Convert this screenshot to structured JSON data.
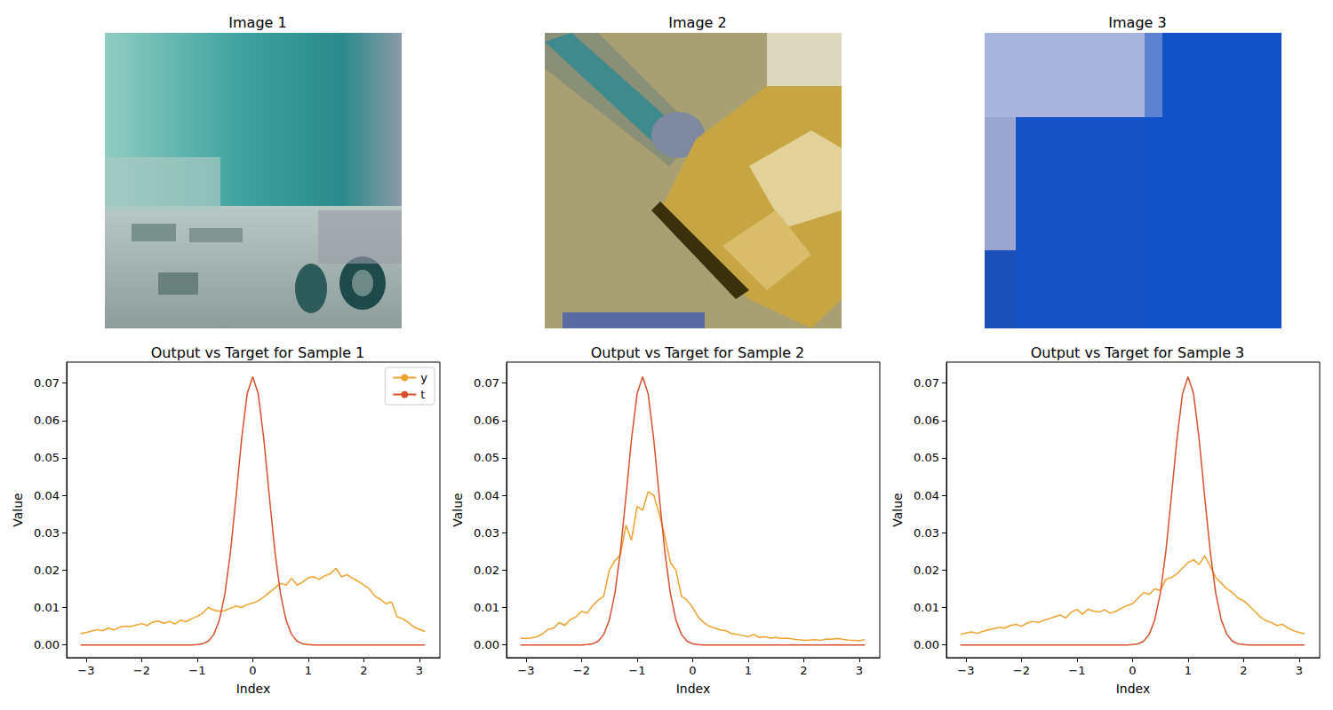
{
  "images": [
    {
      "title": "Image 1"
    },
    {
      "title": "Image 2"
    },
    {
      "title": "Image 3"
    }
  ],
  "chart_data": [
    {
      "type": "line",
      "title": "Output vs Target for Sample 1",
      "x_label": "Index",
      "y_label": "Value",
      "x": [
        -3.1,
        -3.0,
        -2.9,
        -2.8,
        -2.7,
        -2.6,
        -2.5,
        -2.4,
        -2.3,
        -2.2,
        -2.1,
        -2.0,
        -1.9,
        -1.8,
        -1.7,
        -1.6,
        -1.5,
        -1.4,
        -1.3,
        -1.2,
        -1.1,
        -1.0,
        -0.9,
        -0.8,
        -0.7,
        -0.6,
        -0.5,
        -0.4,
        -0.3,
        -0.2,
        -0.1,
        0.0,
        0.1,
        0.2,
        0.3,
        0.4,
        0.5,
        0.6,
        0.7,
        0.8,
        0.9,
        1.0,
        1.1,
        1.2,
        1.3,
        1.4,
        1.5,
        1.6,
        1.7,
        1.8,
        1.9,
        2.0,
        2.1,
        2.2,
        2.3,
        2.4,
        2.5,
        2.6,
        2.7,
        2.8,
        2.9,
        3.0,
        3.1
      ],
      "series": [
        {
          "name": "y",
          "color": "#f0a12c",
          "values": [
            0.003,
            0.0033,
            0.0037,
            0.0041,
            0.0038,
            0.0045,
            0.004,
            0.0047,
            0.005,
            0.0049,
            0.0053,
            0.0057,
            0.0052,
            0.0061,
            0.0064,
            0.0058,
            0.0063,
            0.0056,
            0.0066,
            0.0062,
            0.007,
            0.0076,
            0.0085,
            0.01,
            0.0093,
            0.009,
            0.0092,
            0.0098,
            0.0104,
            0.01,
            0.0108,
            0.0112,
            0.0118,
            0.0128,
            0.014,
            0.0152,
            0.0165,
            0.016,
            0.0178,
            0.016,
            0.0168,
            0.018,
            0.0182,
            0.0175,
            0.0185,
            0.019,
            0.0205,
            0.0182,
            0.0188,
            0.0178,
            0.017,
            0.016,
            0.015,
            0.013,
            0.0122,
            0.011,
            0.0115,
            0.0075,
            0.007,
            0.006,
            0.0048,
            0.0042,
            0.0036
          ]
        },
        {
          "name": "t",
          "color": "#d8502b",
          "values": [
            0,
            0,
            0,
            0,
            0,
            0,
            0,
            0,
            0,
            0,
            0,
            0,
            0,
            0,
            0,
            0,
            0,
            0,
            0,
            0,
            0,
            0.0001,
            0.0003,
            0.001,
            0.0028,
            0.0066,
            0.0137,
            0.0249,
            0.0396,
            0.055,
            0.0671,
            0.0717,
            0.0671,
            0.055,
            0.0396,
            0.0249,
            0.0137,
            0.0066,
            0.0028,
            0.001,
            0.0003,
            0.0001,
            0,
            0,
            0,
            0,
            0,
            0,
            0,
            0,
            0,
            0,
            0,
            0,
            0,
            0,
            0,
            0,
            0,
            0,
            0,
            0,
            0
          ]
        }
      ],
      "xlim": [
        -3.35,
        3.37
      ],
      "ylim": [
        -0.0034,
        0.0756
      ],
      "xticks": [
        {
          "value": -3,
          "label": "−3"
        },
        {
          "value": -2,
          "label": "−2"
        },
        {
          "value": -1,
          "label": "−1"
        },
        0,
        1,
        2,
        3
      ],
      "yticks": [
        {
          "value": 0,
          "label": "0.00"
        },
        {
          "value": 0.01,
          "label": "0.01"
        },
        {
          "value": 0.02,
          "label": "0.02"
        },
        {
          "value": 0.03,
          "label": "0.03"
        },
        {
          "value": 0.04,
          "label": "0.04"
        },
        {
          "value": 0.05,
          "label": "0.05"
        },
        {
          "value": 0.06,
          "label": "0.06"
        },
        {
          "value": 0.07,
          "label": "0.07"
        }
      ],
      "legend": "upper right",
      "grid": false
    },
    {
      "type": "line",
      "title": "Output vs Target for Sample 2",
      "x_label": "Index",
      "y_label": "Value",
      "x": [
        -3.1,
        -3.0,
        -2.9,
        -2.8,
        -2.7,
        -2.6,
        -2.5,
        -2.4,
        -2.3,
        -2.2,
        -2.1,
        -2.0,
        -1.9,
        -1.8,
        -1.7,
        -1.6,
        -1.5,
        -1.4,
        -1.3,
        -1.2,
        -1.1,
        -1.0,
        -0.9,
        -0.8,
        -0.7,
        -0.6,
        -0.5,
        -0.4,
        -0.3,
        -0.2,
        -0.1,
        0.0,
        0.1,
        0.2,
        0.3,
        0.4,
        0.5,
        0.6,
        0.7,
        0.8,
        0.9,
        1.0,
        1.1,
        1.2,
        1.3,
        1.4,
        1.5,
        1.6,
        1.7,
        1.8,
        1.9,
        2.0,
        2.1,
        2.2,
        2.3,
        2.4,
        2.5,
        2.6,
        2.7,
        2.8,
        2.9,
        3.0,
        3.1
      ],
      "series": [
        {
          "name": "y",
          "color": "#f0a12c",
          "values": [
            0.0018,
            0.0017,
            0.0019,
            0.0022,
            0.003,
            0.0042,
            0.0045,
            0.006,
            0.0052,
            0.0068,
            0.0075,
            0.009,
            0.0085,
            0.0105,
            0.012,
            0.013,
            0.02,
            0.0225,
            0.024,
            0.032,
            0.028,
            0.037,
            0.036,
            0.041,
            0.04,
            0.035,
            0.029,
            0.022,
            0.02,
            0.013,
            0.012,
            0.01,
            0.0075,
            0.006,
            0.005,
            0.0045,
            0.004,
            0.0038,
            0.003,
            0.0028,
            0.0025,
            0.0022,
            0.0028,
            0.002,
            0.0022,
            0.0018,
            0.002,
            0.0017,
            0.0018,
            0.0016,
            0.0014,
            0.0012,
            0.0013,
            0.0014,
            0.0012,
            0.0016,
            0.0015,
            0.0017,
            0.0015,
            0.0013,
            0.0012,
            0.0011,
            0.0014
          ]
        },
        {
          "name": "t",
          "color": "#d8502b",
          "values": [
            0,
            0,
            0,
            0,
            0,
            0,
            0,
            0,
            0,
            0,
            0,
            0,
            0.0001,
            0.0003,
            0.001,
            0.0028,
            0.0066,
            0.0137,
            0.0249,
            0.0396,
            0.055,
            0.0671,
            0.0717,
            0.0671,
            0.055,
            0.0396,
            0.0249,
            0.0137,
            0.0066,
            0.0028,
            0.001,
            0.0003,
            0.0001,
            0,
            0,
            0,
            0,
            0,
            0,
            0,
            0,
            0,
            0,
            0,
            0,
            0,
            0,
            0,
            0,
            0,
            0,
            0,
            0,
            0,
            0,
            0,
            0,
            0,
            0,
            0,
            0,
            0,
            0
          ]
        }
      ],
      "xlim": [
        -3.35,
        3.37
      ],
      "ylim": [
        -0.0034,
        0.0756
      ],
      "xticks": [
        {
          "value": -3,
          "label": "−3"
        },
        {
          "value": -2,
          "label": "−2"
        },
        {
          "value": -1,
          "label": "−1"
        },
        0,
        1,
        2,
        3
      ],
      "yticks": [
        {
          "value": 0,
          "label": "0.00"
        },
        {
          "value": 0.01,
          "label": "0.01"
        },
        {
          "value": 0.02,
          "label": "0.02"
        },
        {
          "value": 0.03,
          "label": "0.03"
        },
        {
          "value": 0.04,
          "label": "0.04"
        },
        {
          "value": 0.05,
          "label": "0.05"
        },
        {
          "value": 0.06,
          "label": "0.06"
        },
        {
          "value": 0.07,
          "label": "0.07"
        }
      ],
      "grid": false
    },
    {
      "type": "line",
      "title": "Output vs Target for Sample 3",
      "x_label": "Index",
      "y_label": "Value",
      "x": [
        -3.1,
        -3.0,
        -2.9,
        -2.8,
        -2.7,
        -2.6,
        -2.5,
        -2.4,
        -2.3,
        -2.2,
        -2.1,
        -2.0,
        -1.9,
        -1.8,
        -1.7,
        -1.6,
        -1.5,
        -1.4,
        -1.3,
        -1.2,
        -1.1,
        -1.0,
        -0.9,
        -0.8,
        -0.7,
        -0.6,
        -0.5,
        -0.4,
        -0.3,
        -0.2,
        -0.1,
        0.0,
        0.1,
        0.2,
        0.3,
        0.4,
        0.5,
        0.6,
        0.7,
        0.8,
        0.9,
        1.0,
        1.1,
        1.2,
        1.3,
        1.4,
        1.5,
        1.6,
        1.7,
        1.8,
        1.9,
        2.0,
        2.1,
        2.2,
        2.3,
        2.4,
        2.5,
        2.6,
        2.7,
        2.8,
        2.9,
        3.0,
        3.1
      ],
      "series": [
        {
          "name": "y",
          "color": "#f0a12c",
          "values": [
            0.0028,
            0.0032,
            0.0035,
            0.0031,
            0.0036,
            0.004,
            0.0043,
            0.0047,
            0.0045,
            0.0052,
            0.0055,
            0.005,
            0.0058,
            0.0063,
            0.006,
            0.0066,
            0.007,
            0.0075,
            0.008,
            0.0072,
            0.0088,
            0.0095,
            0.0082,
            0.0096,
            0.009,
            0.0088,
            0.0094,
            0.0085,
            0.009,
            0.0098,
            0.0105,
            0.011,
            0.0125,
            0.014,
            0.0135,
            0.015,
            0.0145,
            0.0175,
            0.018,
            0.019,
            0.0205,
            0.022,
            0.0228,
            0.0215,
            0.0238,
            0.021,
            0.018,
            0.0165,
            0.015,
            0.014,
            0.0125,
            0.0118,
            0.0105,
            0.009,
            0.0075,
            0.0065,
            0.006,
            0.0052,
            0.0055,
            0.0045,
            0.0038,
            0.0033,
            0.003
          ]
        },
        {
          "name": "t",
          "color": "#d8502b",
          "values": [
            0,
            0,
            0,
            0,
            0,
            0,
            0,
            0,
            0,
            0,
            0,
            0,
            0,
            0,
            0,
            0,
            0,
            0,
            0,
            0,
            0,
            0,
            0,
            0,
            0,
            0,
            0,
            0,
            0,
            0,
            0,
            0.0001,
            0.0003,
            0.001,
            0.0028,
            0.0066,
            0.0137,
            0.0249,
            0.0396,
            0.055,
            0.0671,
            0.0717,
            0.0671,
            0.055,
            0.0396,
            0.0249,
            0.0137,
            0.0066,
            0.0028,
            0.001,
            0.0003,
            0.0001,
            0,
            0,
            0,
            0,
            0,
            0,
            0,
            0,
            0,
            0,
            0
          ]
        }
      ],
      "xlim": [
        -3.35,
        3.37
      ],
      "ylim": [
        -0.0034,
        0.0756
      ],
      "xticks": [
        {
          "value": -3,
          "label": "−3"
        },
        {
          "value": -2,
          "label": "−2"
        },
        {
          "value": -1,
          "label": "−1"
        },
        0,
        1,
        2,
        3
      ],
      "yticks": [
        {
          "value": 0,
          "label": "0.00"
        },
        {
          "value": 0.01,
          "label": "0.01"
        },
        {
          "value": 0.02,
          "label": "0.02"
        },
        {
          "value": 0.03,
          "label": "0.03"
        },
        {
          "value": 0.04,
          "label": "0.04"
        },
        {
          "value": 0.05,
          "label": "0.05"
        },
        {
          "value": 0.06,
          "label": "0.06"
        },
        {
          "value": 0.07,
          "label": "0.07"
        }
      ],
      "grid": false
    }
  ]
}
